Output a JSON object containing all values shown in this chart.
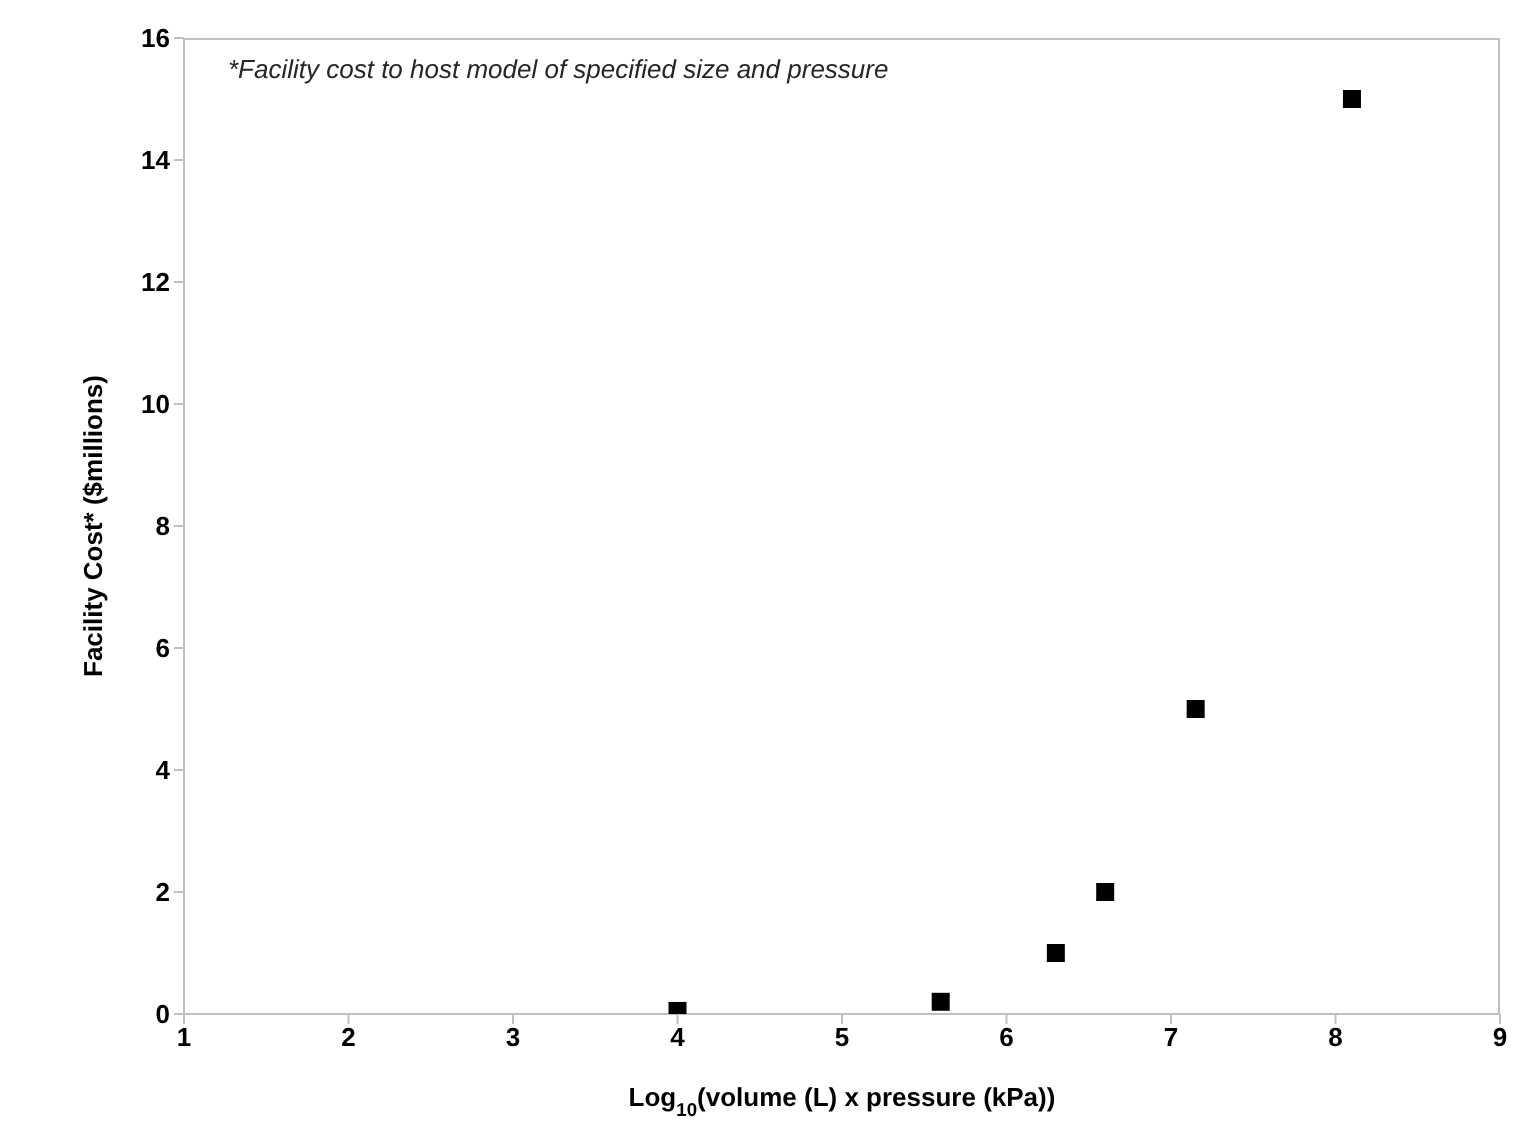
{
  "chart_data": {
    "type": "scatter",
    "xlabel": "Log$_{10}$(volume (L) x pressure (kPa))",
    "ylabel": "Facility Cost* ($millions)",
    "annotations": [
      "*Facility cost to host model of specified size and pressure"
    ],
    "x": [
      4,
      5.6,
      6.3,
      6.6,
      7.15,
      8.1
    ],
    "values": [
      0.05,
      0.2,
      1,
      2,
      5,
      15
    ],
    "color": "#000000",
    "marker": "square",
    "xlim": [
      1,
      9
    ],
    "ylim": [
      0,
      16
    ],
    "xticks": [
      1,
      2,
      3,
      4,
      5,
      6,
      7,
      8,
      9
    ],
    "yticks": [
      0,
      2,
      4,
      6,
      8,
      10,
      12,
      14,
      16
    ]
  }
}
